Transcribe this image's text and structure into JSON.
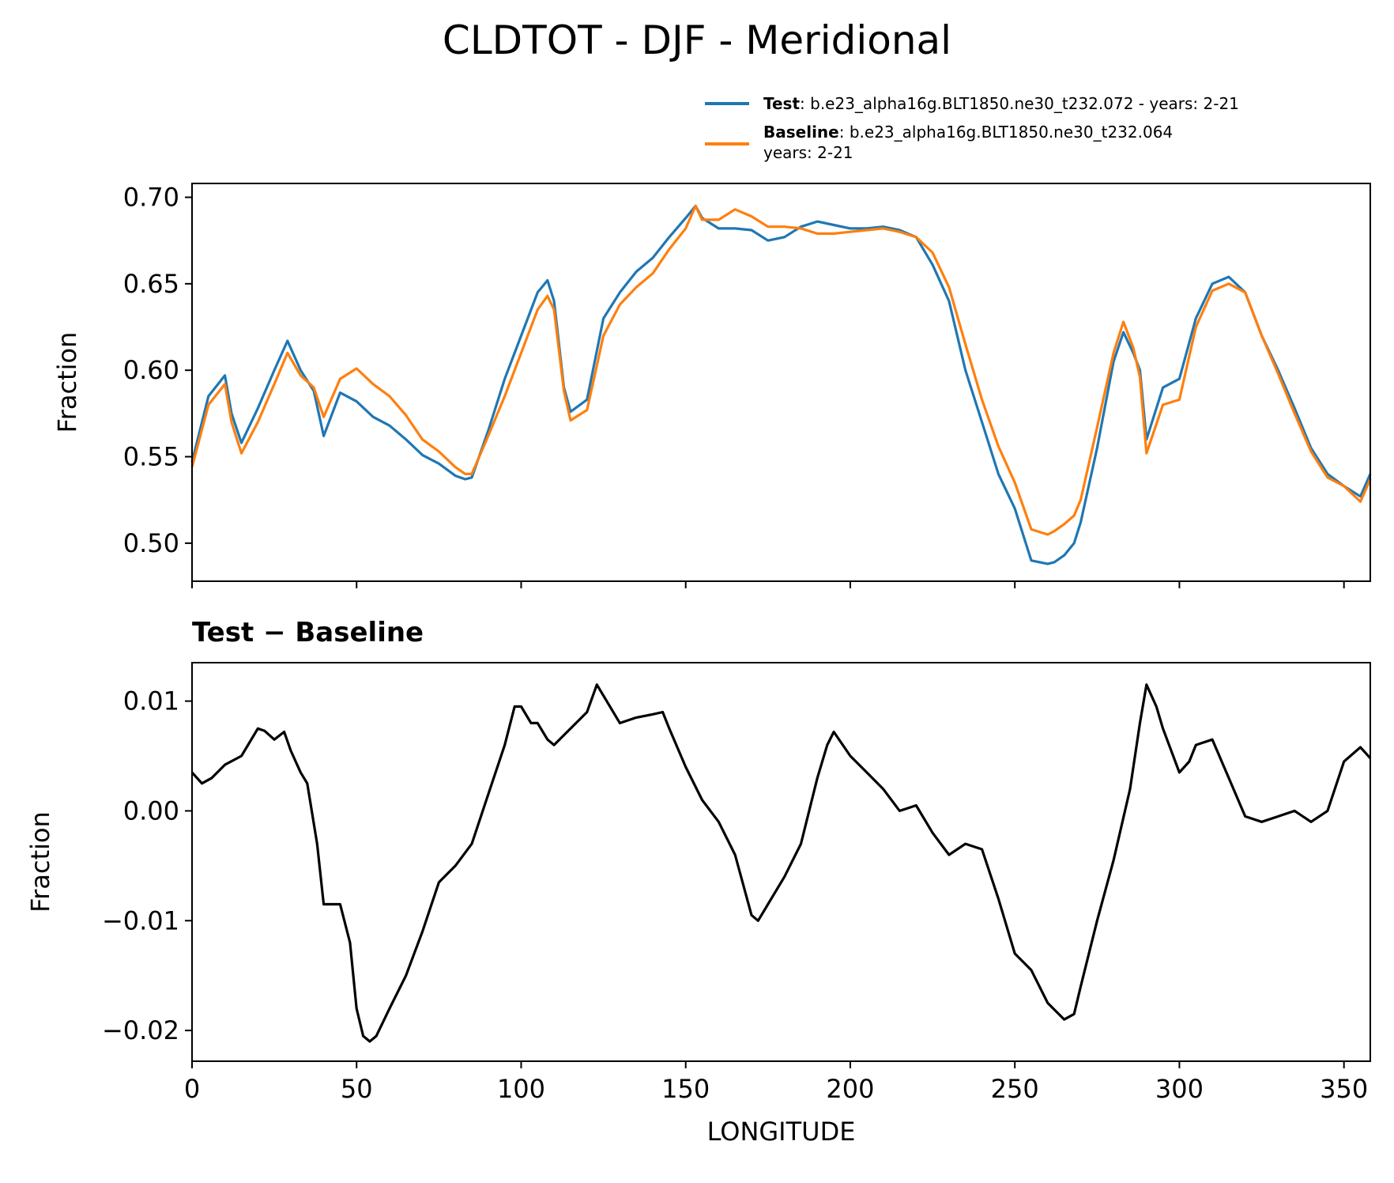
{
  "title": "CLDTOT - DJF - Meridional",
  "legend": {
    "test": {
      "name": "Test",
      "sep": ":",
      "text": "b.e23_alpha16g.BLT1850.ne30_t232.072 - years: 2-21"
    },
    "baseline": {
      "name": "Baseline",
      "sep": ":",
      "text": "b.e23_alpha16g.BLT1850.ne30_t232.064",
      "text2": "years: 2-21"
    }
  },
  "colors": {
    "test": "#1f77b4",
    "baseline": "#ff7f0e",
    "diff": "#000000"
  },
  "chart_data": [
    {
      "type": "line",
      "panel": "top",
      "title": "",
      "xlabel": "",
      "ylabel": "Fraction",
      "xlim": [
        0,
        358
      ],
      "ylim": [
        0.478,
        0.708
      ],
      "yticks": [
        0.5,
        0.55,
        0.6,
        0.65,
        0.7
      ],
      "ytick_labels": [
        "0.50",
        "0.55",
        "0.60",
        "0.65",
        "0.70"
      ],
      "xticks": [
        0,
        50,
        100,
        150,
        200,
        250,
        300,
        350
      ],
      "x": [
        0,
        5,
        10,
        12,
        15,
        20,
        25,
        29,
        33,
        37,
        40,
        45,
        50,
        55,
        60,
        65,
        70,
        75,
        80,
        83,
        85,
        90,
        95,
        100,
        105,
        108,
        110,
        113,
        115,
        120,
        125,
        130,
        135,
        140,
        145,
        150,
        153,
        155,
        160,
        165,
        170,
        175,
        180,
        185,
        190,
        195,
        200,
        205,
        210,
        215,
        220,
        225,
        230,
        235,
        240,
        245,
        250,
        255,
        260,
        262,
        265,
        268,
        270,
        275,
        280,
        283,
        286,
        288,
        290,
        295,
        300,
        305,
        310,
        315,
        320,
        325,
        330,
        335,
        340,
        345,
        350,
        355,
        358
      ],
      "series": [
        {
          "name": "Test",
          "color": "#1f77b4",
          "values": [
            0.547,
            0.585,
            0.597,
            0.575,
            0.558,
            0.578,
            0.6,
            0.617,
            0.6,
            0.588,
            0.562,
            0.587,
            0.582,
            0.573,
            0.568,
            0.56,
            0.551,
            0.546,
            0.539,
            0.537,
            0.538,
            0.565,
            0.595,
            0.62,
            0.645,
            0.652,
            0.64,
            0.59,
            0.576,
            0.583,
            0.63,
            0.645,
            0.657,
            0.665,
            0.677,
            0.688,
            0.695,
            0.688,
            0.682,
            0.682,
            0.681,
            0.675,
            0.677,
            0.683,
            0.686,
            0.684,
            0.682,
            0.682,
            0.683,
            0.681,
            0.677,
            0.661,
            0.64,
            0.6,
            0.57,
            0.54,
            0.52,
            0.49,
            0.488,
            0.489,
            0.493,
            0.5,
            0.512,
            0.555,
            0.605,
            0.622,
            0.61,
            0.6,
            0.56,
            0.59,
            0.595,
            0.63,
            0.65,
            0.654,
            0.645,
            0.62,
            0.6,
            0.578,
            0.555,
            0.54,
            0.533,
            0.527,
            0.54
          ]
        },
        {
          "name": "Baseline",
          "color": "#ff7f0e",
          "values": [
            0.544,
            0.58,
            0.592,
            0.57,
            0.552,
            0.57,
            0.592,
            0.61,
            0.597,
            0.59,
            0.573,
            0.595,
            0.601,
            0.592,
            0.585,
            0.574,
            0.56,
            0.553,
            0.544,
            0.54,
            0.54,
            0.562,
            0.585,
            0.61,
            0.635,
            0.643,
            0.635,
            0.588,
            0.571,
            0.577,
            0.62,
            0.638,
            0.648,
            0.656,
            0.67,
            0.682,
            0.695,
            0.687,
            0.687,
            0.693,
            0.689,
            0.683,
            0.683,
            0.682,
            0.679,
            0.679,
            0.68,
            0.681,
            0.682,
            0.68,
            0.677,
            0.668,
            0.648,
            0.615,
            0.583,
            0.556,
            0.535,
            0.508,
            0.505,
            0.507,
            0.511,
            0.516,
            0.525,
            0.567,
            0.61,
            0.628,
            0.613,
            0.596,
            0.552,
            0.58,
            0.583,
            0.625,
            0.646,
            0.65,
            0.645,
            0.62,
            0.598,
            0.575,
            0.553,
            0.538,
            0.533,
            0.524,
            0.537
          ]
        }
      ]
    },
    {
      "type": "line",
      "panel": "bottom",
      "title": "Test − Baseline",
      "xlabel": "LONGITUDE",
      "ylabel": "Fraction",
      "xlim": [
        0,
        358
      ],
      "ylim": [
        -0.0228,
        0.0135
      ],
      "yticks": [
        -0.02,
        -0.01,
        0.0,
        0.01
      ],
      "ytick_labels": [
        "−0.02",
        "−0.01",
        "0.00",
        "0.01"
      ],
      "xticks": [
        0,
        50,
        100,
        150,
        200,
        250,
        300,
        350
      ],
      "xtick_labels": [
        "0",
        "50",
        "100",
        "150",
        "200",
        "250",
        "300",
        "350"
      ],
      "x": [
        0,
        3,
        6,
        10,
        15,
        20,
        22,
        25,
        28,
        30,
        33,
        35,
        38,
        40,
        43,
        45,
        48,
        50,
        52,
        54,
        56,
        60,
        65,
        70,
        75,
        80,
        85,
        90,
        95,
        98,
        100,
        103,
        105,
        108,
        110,
        115,
        120,
        123,
        125,
        130,
        135,
        140,
        143,
        145,
        150,
        155,
        160,
        165,
        170,
        172,
        175,
        180,
        185,
        190,
        193,
        195,
        200,
        205,
        210,
        215,
        220,
        225,
        230,
        235,
        240,
        245,
        250,
        255,
        260,
        265,
        268,
        270,
        275,
        280,
        285,
        288,
        290,
        293,
        295,
        300,
        303,
        305,
        310,
        315,
        320,
        325,
        330,
        335,
        340,
        345,
        350,
        355,
        358
      ],
      "series": [
        {
          "name": "Test − Baseline",
          "color": "#000000",
          "values": [
            0.0035,
            0.0025,
            0.003,
            0.0042,
            0.005,
            0.0075,
            0.0073,
            0.0065,
            0.0072,
            0.0055,
            0.0035,
            0.0025,
            -0.003,
            -0.0085,
            -0.0085,
            -0.0085,
            -0.012,
            -0.018,
            -0.0205,
            -0.021,
            -0.0205,
            -0.018,
            -0.015,
            -0.011,
            -0.0065,
            -0.005,
            -0.003,
            0.0015,
            0.006,
            0.0095,
            0.0095,
            0.008,
            0.008,
            0.0065,
            0.006,
            0.0075,
            0.009,
            0.0115,
            0.0105,
            0.008,
            0.0085,
            0.0088,
            0.009,
            0.0075,
            0.004,
            0.001,
            -0.001,
            -0.004,
            -0.0095,
            -0.01,
            -0.0085,
            -0.006,
            -0.003,
            0.003,
            0.006,
            0.0072,
            0.005,
            0.0035,
            0.002,
            0.0,
            0.0005,
            -0.002,
            -0.004,
            -0.003,
            -0.0035,
            -0.008,
            -0.013,
            -0.0145,
            -0.0175,
            -0.019,
            -0.0185,
            -0.016,
            -0.01,
            -0.0045,
            0.002,
            0.008,
            0.0115,
            0.0095,
            0.0075,
            0.0035,
            0.0045,
            0.006,
            0.0065,
            0.003,
            -0.0005,
            -0.001,
            -0.0005,
            0.0,
            -0.001,
            0.0,
            0.0045,
            0.0058,
            0.0048
          ]
        }
      ]
    }
  ]
}
